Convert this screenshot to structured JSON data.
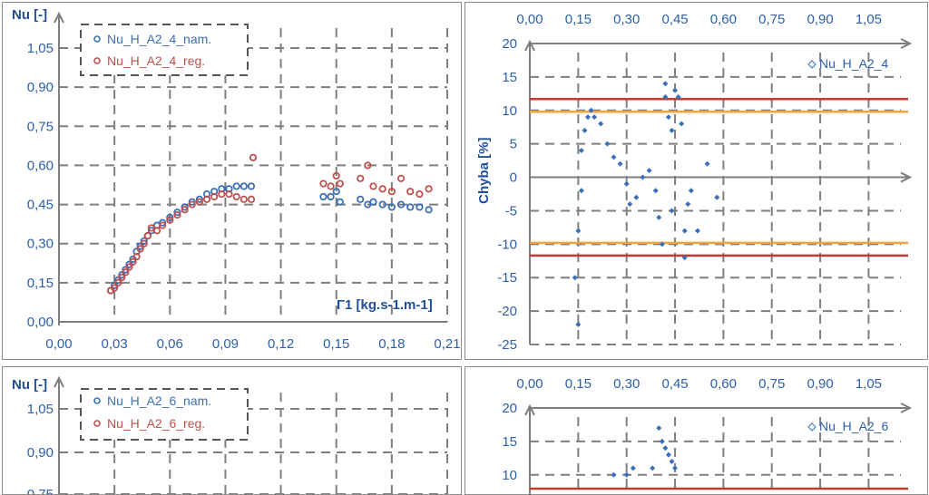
{
  "chart_data": [
    {
      "type": "scatter",
      "ylabel": "Nu [-]",
      "xlabel": "Γ1 [kg.s-1.m-1]",
      "xlim": [
        0,
        0.21
      ],
      "ylim": [
        0,
        1.05
      ],
      "xticks": [
        "0,00",
        "0,03",
        "0,06",
        "0,09",
        "0,12",
        "0,15",
        "0,18",
        "0,21"
      ],
      "yticks": [
        "0,00",
        "0,15",
        "0,30",
        "0,45",
        "0,60",
        "0,75",
        "0,90",
        "1,05"
      ],
      "grid": true,
      "legend_position": "top-left",
      "series": [
        {
          "name": "Nu_H_A2_4_nam.",
          "color": "#3b6fb6",
          "x": [
            0.028,
            0.03,
            0.032,
            0.034,
            0.036,
            0.038,
            0.04,
            0.042,
            0.044,
            0.046,
            0.048,
            0.05,
            0.053,
            0.056,
            0.06,
            0.064,
            0.068,
            0.072,
            0.076,
            0.08,
            0.084,
            0.088,
            0.092,
            0.096,
            0.1,
            0.104,
            0.143,
            0.147,
            0.15,
            0.152,
            0.163,
            0.167,
            0.17,
            0.175,
            0.18,
            0.185,
            0.19,
            0.195,
            0.2
          ],
          "y": [
            0.12,
            0.14,
            0.16,
            0.18,
            0.2,
            0.22,
            0.24,
            0.27,
            0.29,
            0.31,
            0.33,
            0.35,
            0.37,
            0.38,
            0.4,
            0.42,
            0.44,
            0.46,
            0.47,
            0.49,
            0.5,
            0.51,
            0.51,
            0.52,
            0.52,
            0.52,
            0.48,
            0.48,
            0.5,
            0.46,
            0.47,
            0.45,
            0.46,
            0.45,
            0.44,
            0.45,
            0.44,
            0.44,
            0.43
          ]
        },
        {
          "name": "Nu_H_A2_4_reg.",
          "color": "#c0504d",
          "x": [
            0.028,
            0.03,
            0.032,
            0.034,
            0.036,
            0.038,
            0.04,
            0.042,
            0.044,
            0.046,
            0.048,
            0.05,
            0.053,
            0.056,
            0.06,
            0.064,
            0.068,
            0.072,
            0.076,
            0.08,
            0.084,
            0.088,
            0.092,
            0.096,
            0.1,
            0.104,
            0.105,
            0.143,
            0.147,
            0.15,
            0.152,
            0.163,
            0.167,
            0.17,
            0.175,
            0.18,
            0.185,
            0.19,
            0.195,
            0.2
          ],
          "y": [
            0.12,
            0.13,
            0.15,
            0.17,
            0.19,
            0.21,
            0.23,
            0.25,
            0.28,
            0.3,
            0.33,
            0.36,
            0.35,
            0.37,
            0.39,
            0.41,
            0.43,
            0.45,
            0.46,
            0.47,
            0.48,
            0.49,
            0.49,
            0.48,
            0.47,
            0.47,
            0.63,
            0.53,
            0.52,
            0.56,
            0.53,
            0.55,
            0.6,
            0.52,
            0.51,
            0.5,
            0.55,
            0.5,
            0.49,
            0.51
          ]
        }
      ]
    },
    {
      "type": "scatter",
      "ylabel": "Chyba [%]",
      "xlim": [
        0,
        1.15
      ],
      "ylim": [
        -25,
        20
      ],
      "xticks": [
        "0,00",
        "0,15",
        "0,30",
        "0,45",
        "0,60",
        "0,75",
        "0,90",
        "1,05"
      ],
      "yticks": [
        "20",
        "15",
        "10",
        "5",
        "0",
        "-5",
        "-10",
        "-15",
        "-20",
        "-25"
      ],
      "x_axis_position": "top",
      "grid": true,
      "legend_position": "top-right",
      "hlines": [
        {
          "y": 11.7,
          "color": "#c43a2f"
        },
        {
          "y": 9.8,
          "color": "#f2a33a"
        },
        {
          "y": -9.8,
          "color": "#f2a33a"
        },
        {
          "y": -11.7,
          "color": "#c43a2f"
        }
      ],
      "series": [
        {
          "name": "Nu_H_A2_4",
          "color": "#3b6fb6",
          "x": [
            0.14,
            0.15,
            0.15,
            0.16,
            0.16,
            0.17,
            0.18,
            0.19,
            0.2,
            0.22,
            0.24,
            0.26,
            0.28,
            0.3,
            0.31,
            0.33,
            0.35,
            0.37,
            0.39,
            0.4,
            0.41,
            0.42,
            0.42,
            0.43,
            0.44,
            0.44,
            0.45,
            0.46,
            0.47,
            0.48,
            0.48,
            0.49,
            0.5,
            0.52,
            0.55,
            0.58
          ],
          "y": [
            -15,
            -22,
            -8,
            -2,
            4,
            7,
            9,
            10,
            9,
            8,
            5,
            3,
            2,
            -1,
            -4,
            -3,
            0,
            1,
            -2,
            -6,
            -10,
            14,
            12,
            9,
            7,
            -5,
            13,
            12,
            8,
            -8,
            -12,
            -4,
            -2,
            -8,
            2,
            -3
          ]
        }
      ]
    },
    {
      "type": "scatter",
      "ylabel": "Nu [-]",
      "ylim": [
        0,
        1.05
      ],
      "yticks": [
        "1,05",
        "0,90",
        "0,75"
      ],
      "grid": true,
      "legend_position": "top-left",
      "series": [
        {
          "name": "Nu_H_A2_6_nam.",
          "color": "#3b6fb6",
          "x": [],
          "y": []
        },
        {
          "name": "Nu_H_A2_6_reg.",
          "color": "#c0504d",
          "x": [],
          "y": []
        }
      ]
    },
    {
      "type": "scatter",
      "xlim": [
        0,
        1.15
      ],
      "ylim": [
        -25,
        20
      ],
      "xticks": [
        "0,00",
        "0,15",
        "0,30",
        "0,45",
        "0,60",
        "0,75",
        "0,90",
        "1,05"
      ],
      "yticks": [
        "20",
        "15",
        "10"
      ],
      "x_axis_position": "top",
      "grid": true,
      "legend_position": "top-right",
      "series": [
        {
          "name": "Nu_H_A2_6",
          "color": "#3b6fb6",
          "x": [
            0.4,
            0.41,
            0.42,
            0.43,
            0.44,
            0.45,
            0.38,
            0.32,
            0.3,
            0.26
          ],
          "y": [
            17,
            15,
            14,
            13,
            12,
            11,
            11,
            11,
            10,
            10
          ]
        }
      ]
    }
  ]
}
